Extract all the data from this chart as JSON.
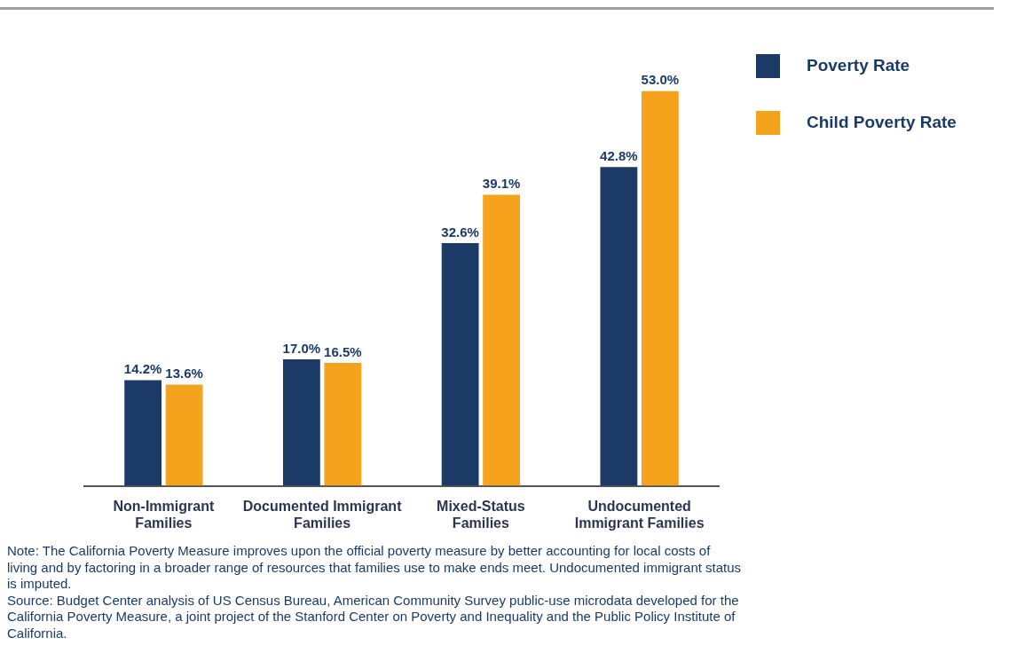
{
  "chart_data": {
    "type": "bar",
    "categories": [
      "Non-Immigrant Families",
      "Documented Immigrant Families",
      "Mixed-Status Families",
      "Undocumented Immigrant Families"
    ],
    "series": [
      {
        "name": "Poverty Rate",
        "color": "#1b3b66",
        "values": [
          14.2,
          17.0,
          32.6,
          42.8
        ],
        "value_labels": [
          "14.2%",
          "17.0%",
          "32.6%",
          "42.8%"
        ]
      },
      {
        "name": "Child Poverty Rate",
        "color": "#f5a31d",
        "values": [
          13.6,
          16.5,
          39.1,
          53.0
        ],
        "value_labels": [
          "13.6%",
          "16.5%",
          "39.1%",
          "53.0%"
        ]
      }
    ],
    "legend": "top right",
    "grid": false,
    "annotations": [
      "Note: The California Poverty Measure improves upon the official poverty measure by better accounting for local costs of living and by factoring in a broader range of resources that families use to make ends meet. Undocumented immigrant status is imputed.",
      "Source: Budget Center analysis of US Census Bureau, American Community Survey public-use microdata developed for the California Poverty Measure, a joint project of the Stanford Center on Poverty and Inequality and the Public Policy Institute of California."
    ]
  }
}
